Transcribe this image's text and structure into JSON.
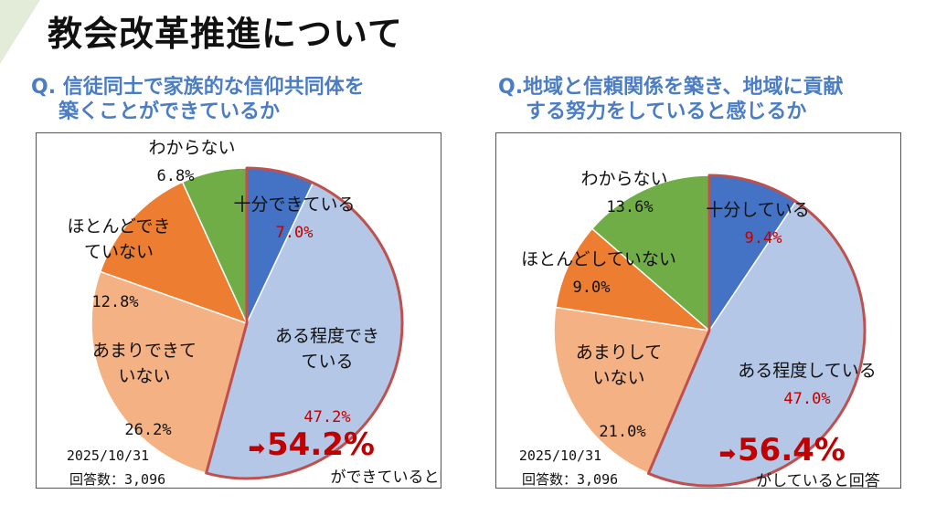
{
  "slide_title": "教会改革推進について",
  "questions": [
    {
      "line1": "Q.  信徒同士で家族的な信仰共同体を",
      "line2": "築くことができているか"
    },
    {
      "line1": "Q.地域と信頼関係を築き、地域に貢献",
      "line2": "する努力をしていると感じるか"
    }
  ],
  "chart_data": [
    {
      "type": "pie",
      "title": "信徒同士で家族的な信仰共同体を築くことができているか",
      "date": "2025/10/31",
      "responses": "回答数：3,096",
      "slices": [
        {
          "label_lines": [
            "十分できている"
          ],
          "value": 7.0,
          "value_text": "7.0%",
          "color": "#4472c4",
          "highlight": true
        },
        {
          "label_lines": [
            "ある程度でき",
            "ている"
          ],
          "value": 47.2,
          "value_text": "47.2%",
          "color": "#b4c7e7",
          "highlight": true
        },
        {
          "label_lines": [
            "あまりできて",
            "いない"
          ],
          "value": 26.2,
          "value_text": "26.2%",
          "color": "#f4b183",
          "highlight": false
        },
        {
          "label_lines": [
            "ほとんどでき",
            "ていない"
          ],
          "value": 12.8,
          "value_text": "12.8%",
          "color": "#ed7d31",
          "highlight": false
        },
        {
          "label_lines": [
            "わからない"
          ],
          "value": 6.8,
          "value_text": "6.8%",
          "color": "#70ad47",
          "highlight": false
        }
      ],
      "callout": {
        "arrow": "➡",
        "value": "54.2%",
        "caption": "ができていると回答"
      }
    },
    {
      "type": "pie",
      "title": "地域と信頼関係を築き、地域に貢献する努力をしていると感じるか",
      "date": "2025/10/31",
      "responses": "回答数：3,096",
      "slices": [
        {
          "label_lines": [
            "十分している"
          ],
          "value": 9.4,
          "value_text": "9.4%",
          "color": "#4472c4",
          "highlight": true
        },
        {
          "label_lines": [
            "ある程度している"
          ],
          "value": 47.0,
          "value_text": "47.0%",
          "color": "#b4c7e7",
          "highlight": true
        },
        {
          "label_lines": [
            "あまりして",
            "いない"
          ],
          "value": 21.0,
          "value_text": "21.0%",
          "color": "#f4b183",
          "highlight": false
        },
        {
          "label_lines": [
            "ほとんどしていない"
          ],
          "value": 9.0,
          "value_text": "9.0%",
          "color": "#ed7d31",
          "highlight": false
        },
        {
          "label_lines": [
            "わからない"
          ],
          "value": 13.6,
          "value_text": "13.6%",
          "color": "#70ad47",
          "highlight": false
        }
      ],
      "callout": {
        "arrow": "➡",
        "value": "56.4%",
        "caption": "がしていると回答"
      }
    }
  ]
}
